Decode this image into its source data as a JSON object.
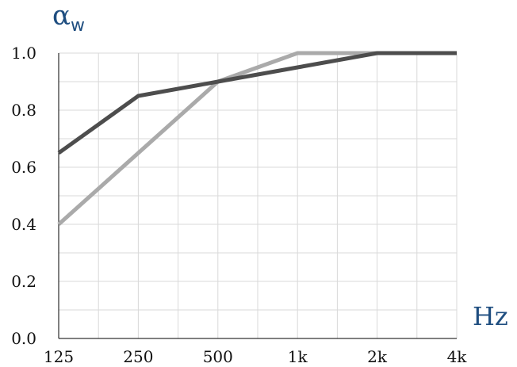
{
  "chart_data": {
    "type": "line",
    "x": [
      "125",
      "250",
      "500",
      "1k",
      "2k",
      "4k"
    ],
    "y_ticks": [
      "0.0",
      "0.2",
      "0.4",
      "0.6",
      "0.8",
      "1.0"
    ],
    "ylim": [
      0,
      1
    ],
    "grid": true,
    "xlabel": "Hz",
    "ylabel": "α",
    "ylabel_sub": "w",
    "series": [
      {
        "color": "#aaaaaa",
        "values": [
          0.4,
          0.65,
          0.9,
          1.0,
          1.0,
          1.0
        ]
      },
      {
        "color": "#4d4d4d",
        "values": [
          0.65,
          0.85,
          0.9,
          0.95,
          1.0,
          1.0
        ]
      }
    ]
  }
}
